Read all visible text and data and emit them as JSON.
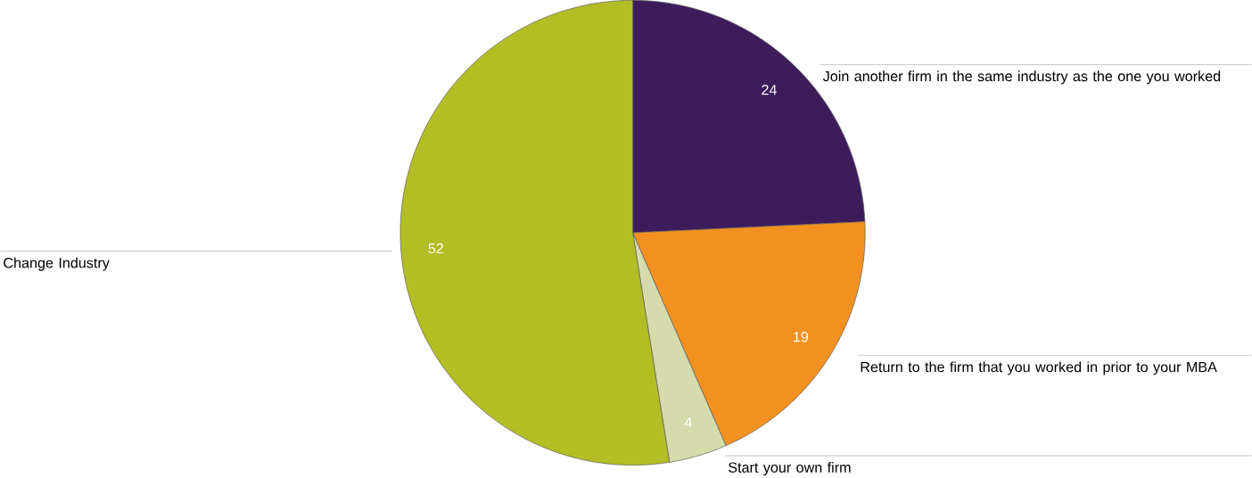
{
  "chart_data": {
    "type": "pie",
    "categories": [
      "Join another firm in the same industry as the one you worked",
      "Return to the firm that you worked in prior to your MBA",
      "Start your own firm",
      "Change Industry"
    ],
    "values": [
      24,
      19,
      4,
      52
    ],
    "colors": [
      "#3d1c5c",
      "#f39120",
      "#d5dbab",
      "#b3be24"
    ],
    "data_labels": true
  }
}
